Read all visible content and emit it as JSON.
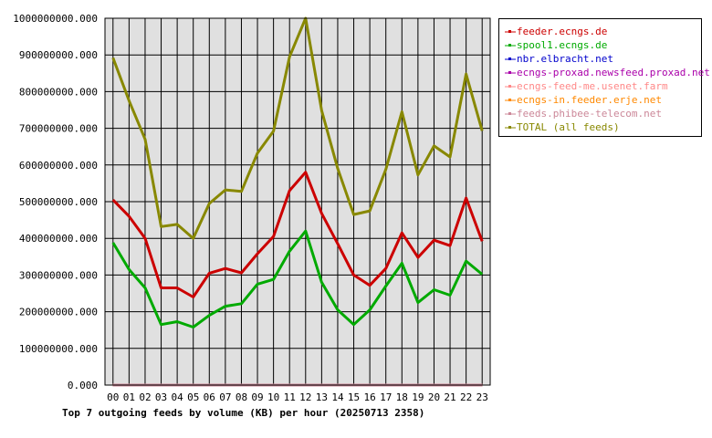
{
  "chart_data": {
    "type": "line",
    "title": "Top 7 outgoing feeds by volume (KB) per hour (20250713 2358)",
    "categories": [
      "00",
      "01",
      "02",
      "03",
      "04",
      "05",
      "06",
      "07",
      "08",
      "09",
      "10",
      "11",
      "12",
      "13",
      "14",
      "15",
      "16",
      "17",
      "18",
      "19",
      "20",
      "21",
      "22",
      "23"
    ],
    "y_ticks": [
      "0.000",
      "100000000.000",
      "200000000.000",
      "300000000.000",
      "400000000.000",
      "500000000.000",
      "600000000.000",
      "700000000.000",
      "800000000.000",
      "900000000.000",
      "1000000000.000"
    ],
    "ylim": [
      0,
      1000000000
    ],
    "grid": true,
    "legend_position": "right",
    "series": [
      {
        "name": "feeder.ecngs.de",
        "color": "#cc0000",
        "values": [
          505000000,
          460000000,
          400000000,
          265000000,
          265000000,
          240000000,
          305000000,
          318000000,
          306000000,
          358000000,
          405000000,
          530000000,
          580000000,
          468000000,
          385000000,
          300000000,
          272000000,
          318000000,
          415000000,
          348000000,
          395000000,
          380000000,
          510000000,
          392000000
        ]
      },
      {
        "name": "spool1.ecngs.de",
        "color": "#00aa00",
        "values": [
          388000000,
          315000000,
          265000000,
          165000000,
          173000000,
          158000000,
          190000000,
          215000000,
          222000000,
          275000000,
          288000000,
          365000000,
          420000000,
          280000000,
          205000000,
          165000000,
          205000000,
          270000000,
          332000000,
          225000000,
          260000000,
          245000000,
          338000000,
          302000000
        ]
      },
      {
        "name": "nbr.elbracht.net",
        "color": "#0000cc",
        "values": [
          0,
          0,
          0,
          0,
          0,
          0,
          0,
          0,
          0,
          0,
          0,
          0,
          0,
          0,
          0,
          0,
          0,
          0,
          0,
          0,
          0,
          0,
          0,
          0
        ]
      },
      {
        "name": "ecngs-proxad.newsfeed.proxad.net",
        "color": "#aa00aa",
        "values": [
          0,
          0,
          0,
          0,
          0,
          0,
          0,
          0,
          0,
          0,
          0,
          0,
          0,
          0,
          0,
          0,
          0,
          0,
          0,
          0,
          0,
          0,
          0,
          0
        ]
      },
      {
        "name": "ecngs-feed-me.usenet.farm",
        "color": "#ff8888",
        "values": [
          0,
          0,
          0,
          0,
          0,
          0,
          0,
          0,
          0,
          0,
          0,
          0,
          0,
          0,
          0,
          0,
          0,
          0,
          0,
          0,
          0,
          0,
          0,
          0
        ]
      },
      {
        "name": "ecngs-in.feeder.erje.net",
        "color": "#ff8800",
        "values": [
          0,
          0,
          0,
          0,
          0,
          0,
          0,
          0,
          0,
          0,
          0,
          0,
          0,
          0,
          0,
          0,
          0,
          0,
          0,
          0,
          0,
          0,
          0,
          0
        ]
      },
      {
        "name": "feeds.phibee-telecom.net",
        "color": "#cc8899",
        "values": [
          0,
          0,
          0,
          0,
          0,
          0,
          0,
          0,
          0,
          0,
          0,
          0,
          0,
          0,
          0,
          0,
          0,
          0,
          0,
          0,
          0,
          0,
          0,
          0
        ]
      },
      {
        "name": "TOTAL (all feeds)",
        "color": "#888800",
        "values": [
          892000000,
          775000000,
          670000000,
          432000000,
          438000000,
          400000000,
          495000000,
          532000000,
          528000000,
          632000000,
          692000000,
          895000000,
          1000000000,
          748000000,
          590000000,
          465000000,
          475000000,
          588000000,
          745000000,
          573000000,
          652000000,
          622000000,
          848000000,
          693000000
        ]
      }
    ]
  }
}
